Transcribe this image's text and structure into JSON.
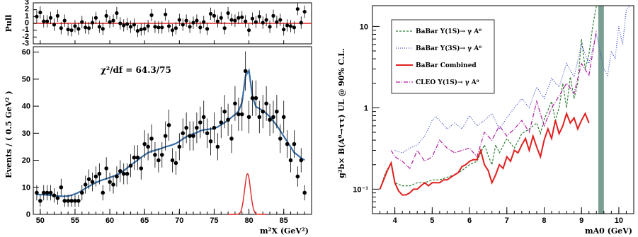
{
  "chart_data": [
    {
      "type": "scatter",
      "panel": "pull",
      "ylabel": "Pull",
      "ylim": [
        -3,
        3
      ],
      "yticks": [
        "3",
        "2",
        "1",
        "0",
        "-1",
        "-2",
        "-3"
      ],
      "colors": {
        "points": "#000000",
        "zero_line": "#dd2222"
      },
      "values": [
        1,
        1.6,
        0.3,
        0.3,
        0.8,
        -0.2,
        1.1,
        -0.7,
        0.4,
        -0.9,
        -1,
        -0.4,
        -0.8,
        0.2,
        -0.6,
        -0.7,
        0.1,
        0.8,
        -0.5,
        -0.8,
        1.1,
        0.2,
        0.4,
        1.5,
        0,
        -0.3,
        -0.1,
        -0.5,
        -0.2,
        -1.1,
        -0.9,
        -0.8,
        -0.4,
        1.2,
        -0.5,
        -0.6,
        -0.6,
        1.3,
        -0.4,
        -1,
        -0.7,
        0.5,
        -0.2,
        0.4,
        -0.5,
        0.1,
        0.4,
        -0.6,
        0.2,
        -0.8,
        1.4,
        1.1,
        0.3,
        0.8,
        -0.7,
        1.5,
        0.5,
        0.4,
        0.8,
        0.9,
        0.3,
        -1,
        0.7,
        0.2,
        1,
        0.1,
        0.5,
        -0.5,
        1.1,
        0.2,
        0.5,
        -0.9,
        -0.3,
        -0.4,
        -0.6,
        2.1,
        0.1,
        1.7
      ]
    },
    {
      "type": "scatter",
      "panel": "main",
      "annotation": "χ²/df = 64.3/75",
      "ylabel": "Events / ( 0.5 GeV² )",
      "xlabel": "m²X (GeV²)",
      "xlim": [
        49,
        89
      ],
      "ylim": [
        0,
        62
      ],
      "xticks": [
        50,
        55,
        60,
        65,
        70,
        75,
        80,
        85
      ],
      "yticks": [
        0,
        10,
        20,
        30,
        40,
        50,
        60
      ],
      "colors": {
        "points": "#000000",
        "fit": "#3a6ea5",
        "signal": "#dd2222"
      },
      "x": [
        49.5,
        50,
        50.5,
        51,
        51.5,
        52,
        52.5,
        53,
        53.5,
        54,
        54.5,
        55,
        55.5,
        56,
        56.5,
        57,
        57.5,
        58,
        58.5,
        59,
        59.5,
        60,
        60.5,
        61,
        61.5,
        62,
        62.5,
        63,
        63.5,
        64,
        64.5,
        65,
        65.5,
        66,
        66.5,
        67,
        67.5,
        68,
        68.5,
        69,
        69.5,
        70,
        70.5,
        71,
        71.5,
        72,
        72.5,
        73,
        73.5,
        74,
        74.5,
        75,
        75.5,
        76,
        76.5,
        77,
        77.5,
        78,
        78.5,
        79,
        79.5,
        80,
        80.5,
        81,
        81.5,
        82,
        82.5,
        83,
        83.5,
        84,
        84.5,
        85,
        85.5,
        86,
        86.5,
        87,
        87.5,
        88
      ],
      "values": [
        8,
        5,
        8,
        8,
        8,
        7,
        6,
        10,
        5,
        5,
        5,
        5,
        5,
        8,
        11,
        13,
        12,
        14,
        15,
        8,
        17,
        12,
        11,
        14,
        16,
        15,
        15,
        18,
        21,
        21,
        17,
        26,
        25,
        28,
        22,
        20,
        22,
        29,
        33,
        20,
        19,
        25,
        30,
        32,
        29,
        29,
        32,
        34,
        36,
        30,
        27,
        32,
        25,
        34,
        38,
        35,
        28,
        41,
        37,
        37,
        53,
        36,
        43,
        43,
        36,
        38,
        41,
        35,
        36,
        38,
        28,
        36,
        26,
        20,
        26,
        14,
        20,
        8
      ],
      "signal_center": 79.8,
      "signal_peak": 15
    },
    {
      "type": "line",
      "panel": "right",
      "ylabel": "g²b× B(A⁰→ττ) UL @ 90% C.L.",
      "xlabel": "mA0 (GeV)",
      "scale": "log",
      "xlim": [
        3.4,
        10.4
      ],
      "ylim": [
        0.05,
        18
      ],
      "xticks": [
        4,
        5,
        6,
        7,
        8,
        9,
        10
      ],
      "yticks": [
        {
          "v": 0.1,
          "label": "10⁻¹"
        },
        {
          "v": 1,
          "label": "1"
        },
        {
          "v": 10,
          "label": "10"
        }
      ],
      "excluded_band": [
        9.45,
        9.6
      ],
      "colors": {
        "band": "#7a9e92"
      },
      "series": [
        {
          "name": "BaBar Υ(1S)→ γ A⁰",
          "color": "#2e7d32",
          "dash": "3,2",
          "width": 1.2,
          "x": [
            3.6,
            3.75,
            3.9,
            4.0,
            4.2,
            4.4,
            4.6,
            4.8,
            5.0,
            5.2,
            5.4,
            5.6,
            5.8,
            6.0,
            6.2,
            6.4,
            6.5,
            6.6,
            6.7,
            6.8,
            7.0,
            7.2,
            7.4,
            7.6,
            7.8,
            7.9,
            8.0,
            8.2,
            8.3,
            8.4,
            8.5,
            8.6,
            8.7,
            8.8,
            8.9,
            9.0,
            9.1,
            9.2,
            9.3,
            9.4
          ],
          "y": [
            0.1,
            0.16,
            0.21,
            0.12,
            0.11,
            0.11,
            0.12,
            0.12,
            0.13,
            0.13,
            0.14,
            0.15,
            0.17,
            0.2,
            0.22,
            0.35,
            0.26,
            0.2,
            0.35,
            0.28,
            0.42,
            0.32,
            0.48,
            0.55,
            0.65,
            0.48,
            0.72,
            1.2,
            0.7,
            1.0,
            2.0,
            1.0,
            2.4,
            1.3,
            2.0,
            7.0,
            3.0,
            4.5,
            10,
            18
          ]
        },
        {
          "name": "BaBar Υ(3S)→ γ A⁰",
          "color": "#3b4bc4",
          "dash": "1,2",
          "width": 1.2,
          "x": [
            4.0,
            4.2,
            4.4,
            4.6,
            4.8,
            5.0,
            5.1,
            5.2,
            5.4,
            5.6,
            5.8,
            6.0,
            6.2,
            6.4,
            6.6,
            6.8,
            7.0,
            7.2,
            7.4,
            7.6,
            7.8,
            8.0,
            8.2,
            8.4,
            8.6,
            8.8,
            9.0,
            9.2,
            9.4,
            9.6,
            9.7,
            9.8,
            9.9,
            10.0,
            10.1,
            10.2,
            10.3
          ],
          "y": [
            0.3,
            0.28,
            0.32,
            0.35,
            0.45,
            0.7,
            0.78,
            0.7,
            0.55,
            0.65,
            0.55,
            0.8,
            0.6,
            0.7,
            0.85,
            0.55,
            0.75,
            1.0,
            1.3,
            1.0,
            1.8,
            1.3,
            2.3,
            1.8,
            3.5,
            2.4,
            6,
            3.5,
            8,
            3,
            2.5,
            5,
            4,
            10,
            6,
            16,
            18
          ]
        },
        {
          "name": "BaBar Combined",
          "color": "#e0201f",
          "dash": "",
          "width": 2.0,
          "x": [
            3.6,
            3.7,
            3.8,
            3.9,
            4.0,
            4.1,
            4.2,
            4.3,
            4.4,
            4.5,
            4.6,
            4.7,
            4.8,
            4.9,
            5.0,
            5.1,
            5.2,
            5.3,
            5.4,
            5.5,
            5.6,
            5.7,
            5.8,
            5.9,
            6.0,
            6.1,
            6.2,
            6.3,
            6.4,
            6.5,
            6.6,
            6.7,
            6.8,
            6.9,
            7.0,
            7.1,
            7.2,
            7.3,
            7.4,
            7.5,
            7.6,
            7.7,
            7.8,
            7.9,
            8.0,
            8.1,
            8.2,
            8.3,
            8.4,
            8.5,
            8.6,
            8.7,
            8.8,
            8.9,
            9.0,
            9.1,
            9.2
          ],
          "y": [
            0.1,
            0.13,
            0.17,
            0.21,
            0.12,
            0.095,
            0.085,
            0.085,
            0.09,
            0.1,
            0.1,
            0.11,
            0.12,
            0.11,
            0.12,
            0.12,
            0.12,
            0.13,
            0.13,
            0.14,
            0.15,
            0.16,
            0.19,
            0.2,
            0.22,
            0.23,
            0.23,
            0.3,
            0.2,
            0.17,
            0.12,
            0.15,
            0.2,
            0.18,
            0.25,
            0.22,
            0.3,
            0.28,
            0.35,
            0.42,
            0.3,
            0.45,
            0.33,
            0.25,
            0.4,
            0.55,
            0.42,
            0.7,
            0.48,
            0.6,
            0.85,
            0.65,
            0.75,
            0.55,
            0.7,
            0.85,
            0.65
          ]
        },
        {
          "name": "CLEO Υ(1S)→ γ A⁰",
          "color": "#b01fa0",
          "dash": "6,2,1,2",
          "width": 1.2,
          "x": [
            3.9,
            4.0,
            4.2,
            4.4,
            4.6,
            4.8,
            5.0,
            5.2,
            5.4,
            5.6,
            5.8,
            6.0,
            6.2,
            6.4,
            6.6,
            6.8,
            7.0,
            7.2,
            7.4,
            7.6,
            7.8,
            8.0,
            8.2,
            8.4,
            8.6,
            8.8,
            9.0,
            9.2,
            9.4
          ],
          "y": [
            0.3,
            0.25,
            0.22,
            0.18,
            0.3,
            0.22,
            0.25,
            0.4,
            0.32,
            0.28,
            0.3,
            0.32,
            0.25,
            0.5,
            0.4,
            0.6,
            0.45,
            0.55,
            0.7,
            0.5,
            1.2,
            0.6,
            1.0,
            1.4,
            2.0,
            1.5,
            3.5,
            2.5,
            9
          ]
        }
      ]
    }
  ]
}
